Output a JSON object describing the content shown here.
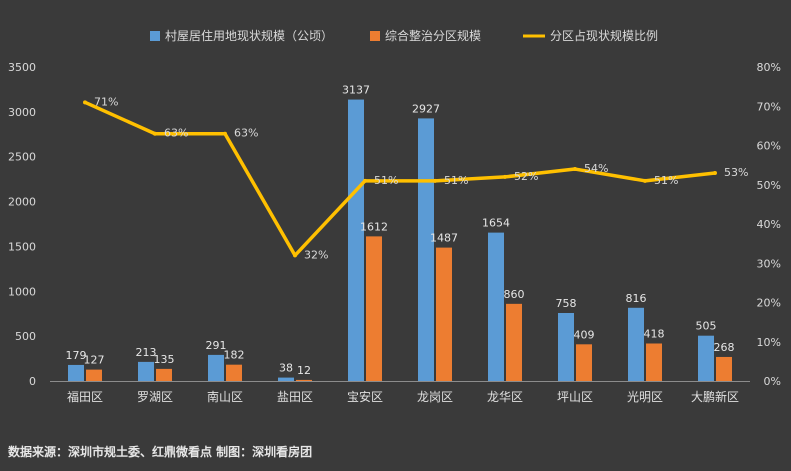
{
  "chart_data": {
    "type": "bar",
    "categories": [
      "福田区",
      "罗湖区",
      "南山区",
      "盐田区",
      "宝安区",
      "龙岗区",
      "龙华区",
      "坪山区",
      "光明区",
      "大鹏新区"
    ],
    "series": [
      {
        "name": "村屋居住用地现状规模（公顷）",
        "type": "bar",
        "axis": "left",
        "color": "#5b9bd5",
        "values": [
          179,
          213,
          291,
          38,
          3137,
          2927,
          1654,
          758,
          816,
          505
        ]
      },
      {
        "name": "综合整治分区规模",
        "type": "bar",
        "axis": "left",
        "color": "#ed7d31",
        "values": [
          127,
          135,
          182,
          12,
          1612,
          1487,
          860,
          409,
          418,
          268
        ]
      },
      {
        "name": "分区占现状规模比例",
        "type": "line",
        "axis": "right",
        "color": "#ffc000",
        "values": [
          71,
          63,
          63,
          32,
          51,
          51,
          52,
          54,
          51,
          53
        ],
        "labels": [
          "71%",
          "63%",
          "63%",
          "32%",
          "51%",
          "51%",
          "52%",
          "54%",
          "51%",
          "53%"
        ]
      }
    ],
    "y_left": {
      "min": 0,
      "max": 3500,
      "ticks": [
        "0",
        "500",
        "1000",
        "1500",
        "2000",
        "2500",
        "3000",
        "3500"
      ]
    },
    "y_right": {
      "min": 0,
      "max": 80,
      "ticks": [
        "0%",
        "10%",
        "20%",
        "30%",
        "40%",
        "50%",
        "60%",
        "70%",
        "80%"
      ]
    },
    "grid": false,
    "legend_position": "top-center"
  },
  "footer": {
    "source": "数据来源：深圳市规土委、红鼎微看点   制图：深圳看房团"
  },
  "colors": {
    "background": "#3a3a3a",
    "axis": "#8c8c8c"
  }
}
